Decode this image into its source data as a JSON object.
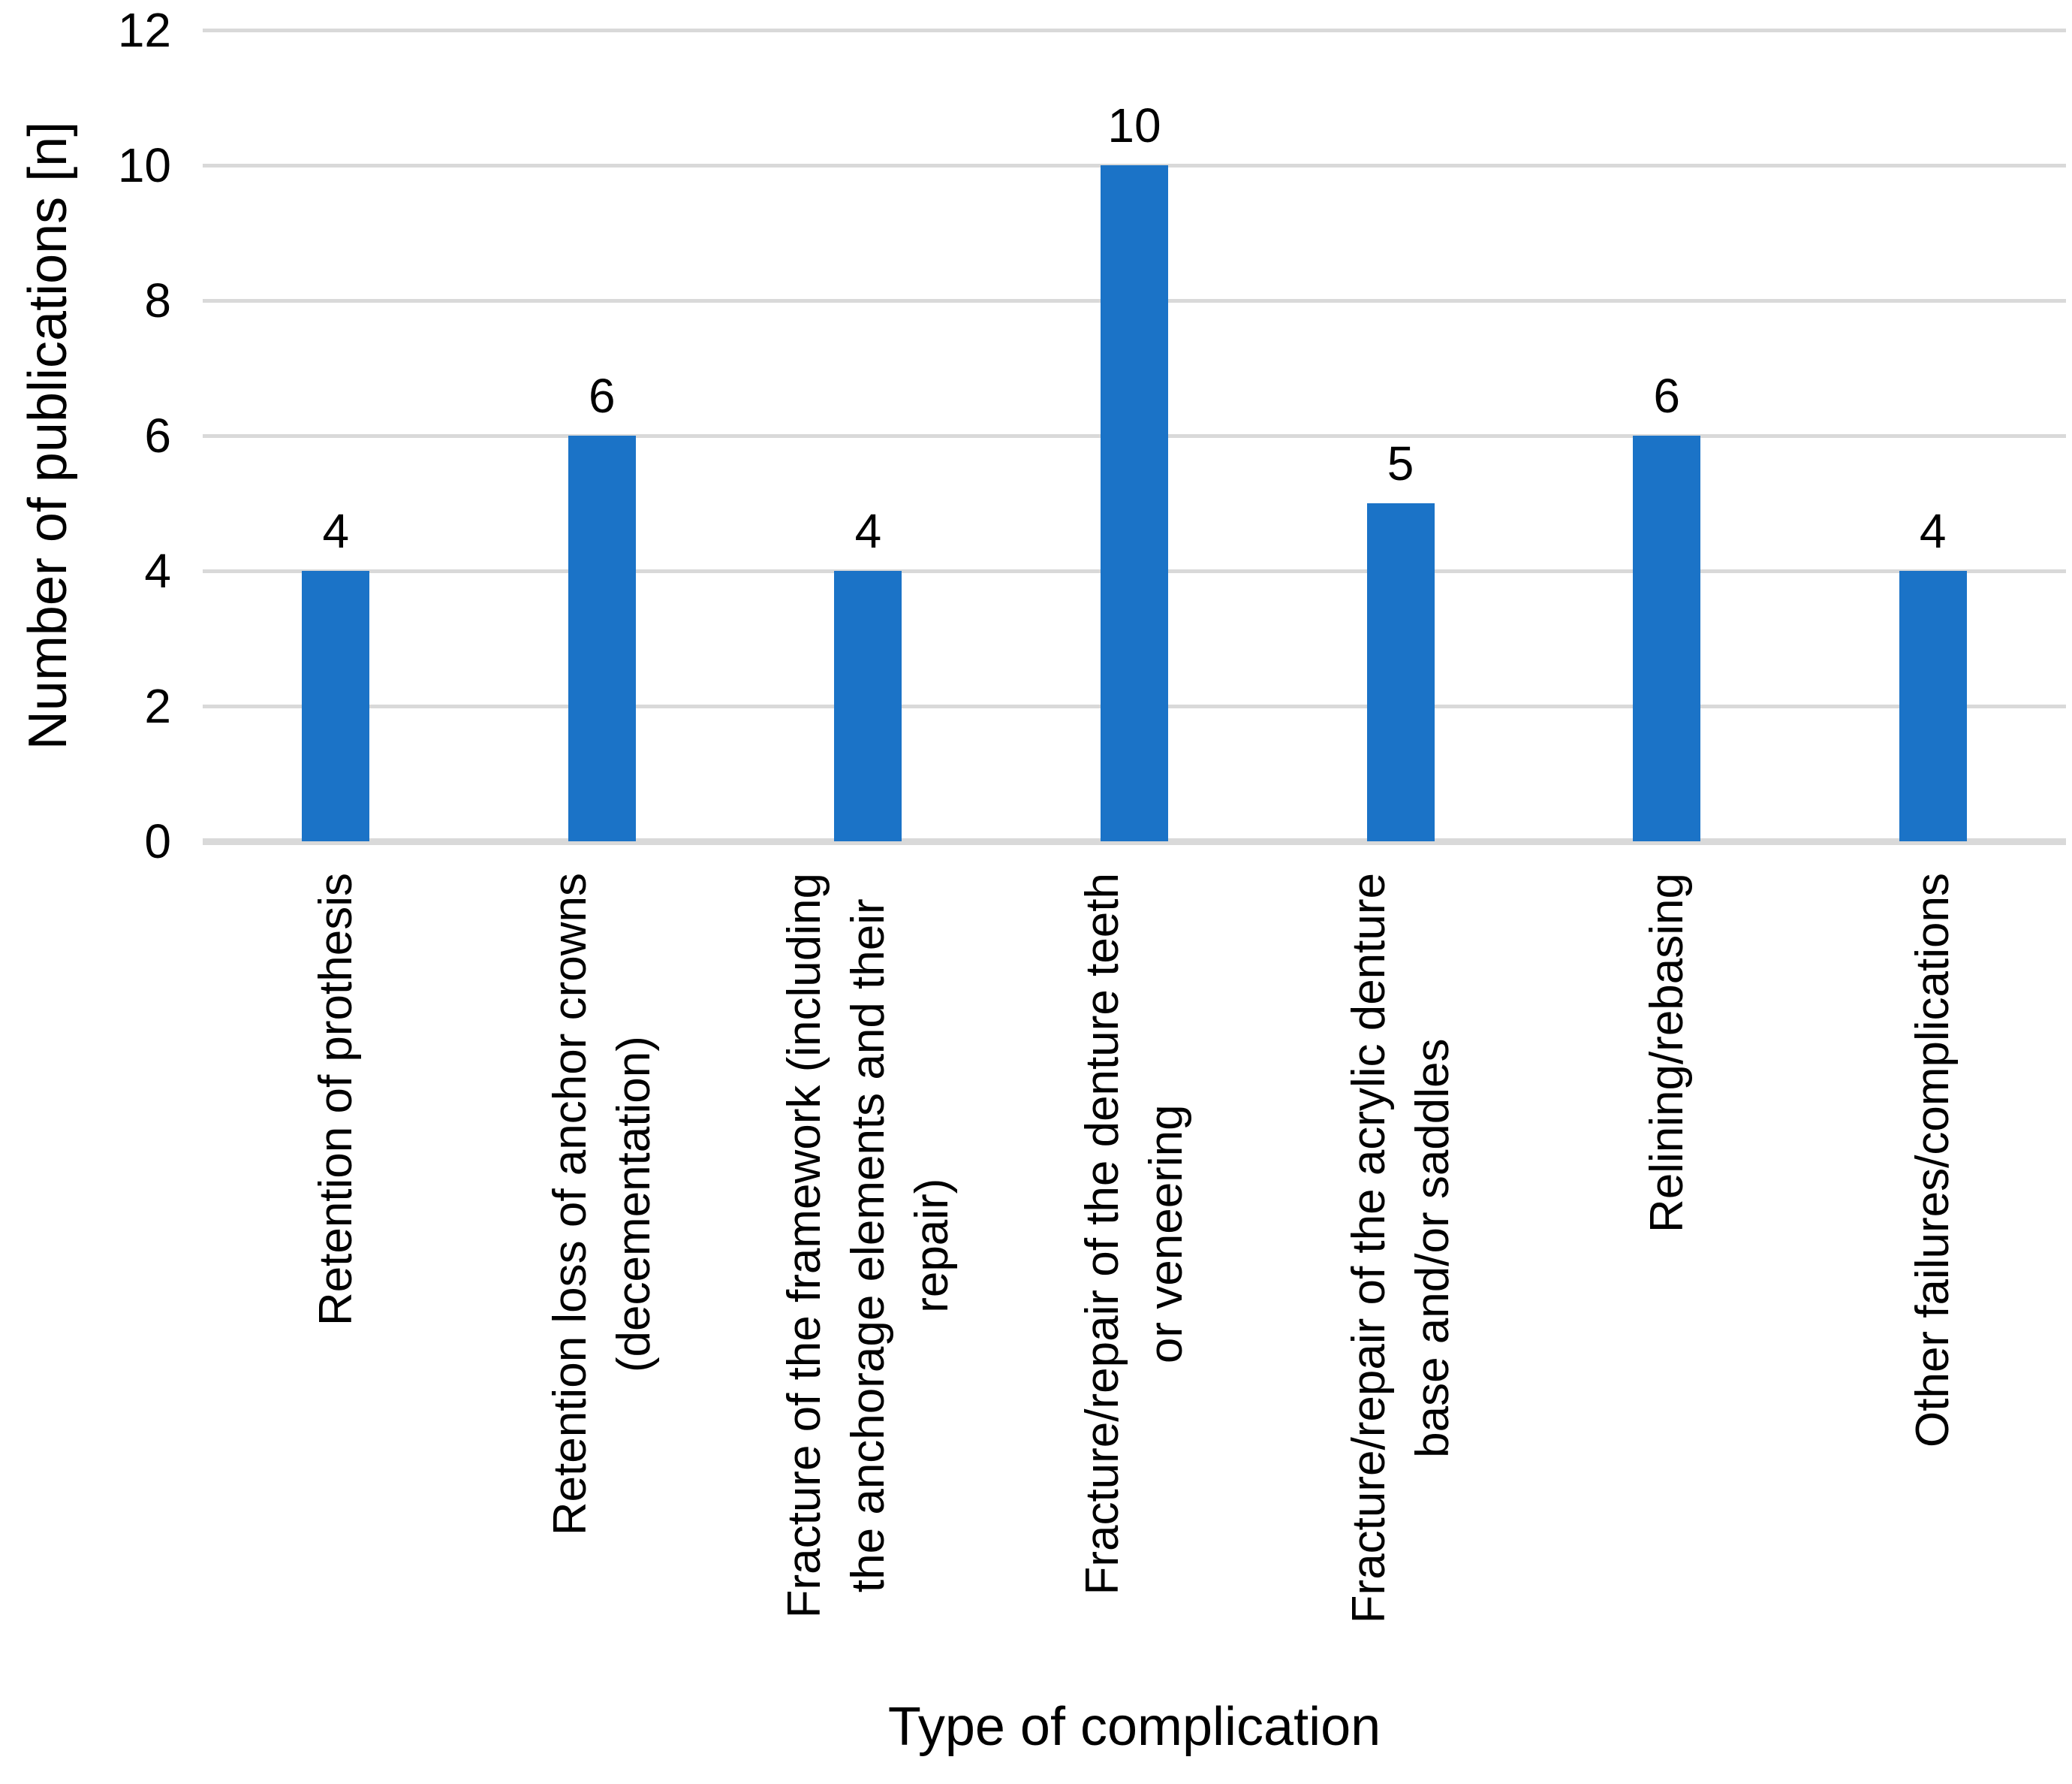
{
  "chart_data": {
    "type": "bar",
    "title": "",
    "xlabel": "Type of complication",
    "ylabel": "Number of publications [n]",
    "categories": [
      "Retention of prothesis",
      "Retention loss of anchor crowns\n(decementation)",
      "Fracture of the framework (including\nthe anchorage elements and their\nrepair)",
      "Fracture/repair of the denture teeth\nor veneering",
      "Fracture/repair of the acrylic denture\nbase and/or saddles",
      "Relining/rebasing",
      "Other failures/complications"
    ],
    "values": [
      4,
      6,
      4,
      10,
      5,
      6,
      4
    ],
    "yticks": [
      0,
      2,
      4,
      6,
      8,
      10,
      12
    ],
    "ylim": [
      0,
      12
    ],
    "grid": true,
    "legend": false,
    "bar_color": "#1B73C7",
    "gridline_color": "#D9D9D9",
    "axis_line_color": "#D9D9D9",
    "text_color": "#000000"
  }
}
